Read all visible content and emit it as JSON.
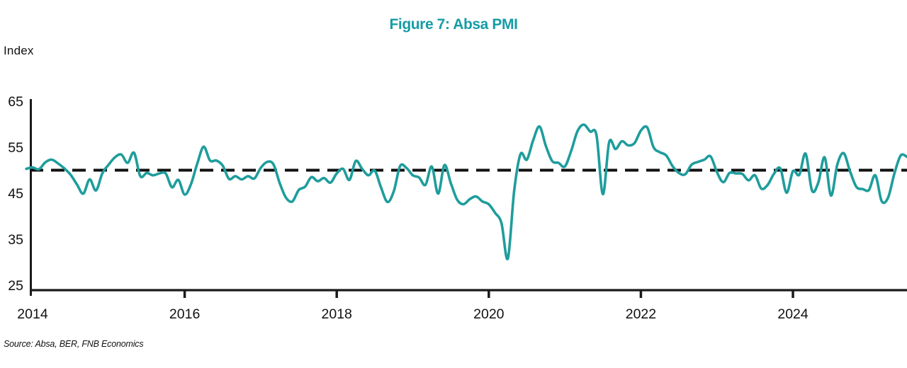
{
  "figure": {
    "title": "Figure 7: Absa PMI",
    "y_axis_unit": "Index",
    "source_note": "Source: Absa, BER, FNB Economics"
  },
  "colors": {
    "line": "#1e9d9c",
    "title": "#169ca6",
    "axis": "#1a1a1a",
    "reference_line": "#111111",
    "text": "#111111",
    "background": "#ffffff"
  },
  "chart_data": {
    "type": "line",
    "title": "Figure 7: Absa PMI",
    "ylabel": "Index",
    "xlabel": "",
    "ylim": [
      25,
      65
    ],
    "y_ticks": [
      65,
      55,
      45,
      35,
      25
    ],
    "x_tick_labels": [
      "2014",
      "2016",
      "2018",
      "2020",
      "2022",
      "2024"
    ],
    "grid": false,
    "legend": "none",
    "reference_line": {
      "y": 50,
      "style": "dashed"
    },
    "series": [
      {
        "name": "Absa PMI",
        "frequency": "monthly",
        "start": "2013-12",
        "end": "2025-07",
        "values": [
          50.3,
          50.6,
          50.2,
          51.7,
          52.3,
          51.5,
          50.4,
          49.0,
          46.9,
          44.9,
          48.0,
          45.6,
          49.3,
          51.2,
          52.8,
          53.4,
          51.6,
          53.8,
          48.7,
          49.4,
          48.9,
          49.3,
          49.3,
          46.3,
          47.9,
          44.7,
          47.0,
          51.5,
          55.1,
          52.1,
          52.1,
          51.0,
          48.1,
          48.7,
          48.0,
          48.7,
          48.2,
          50.5,
          51.8,
          51.3,
          47.2,
          44.0,
          43.2,
          45.7,
          46.4,
          48.5,
          47.6,
          48.3,
          47.3,
          49.3,
          50.3,
          47.9,
          52.0,
          50.3,
          48.9,
          49.9,
          46.2,
          43.1,
          45.4,
          50.9,
          50.5,
          48.9,
          48.4,
          46.8,
          50.8,
          44.9,
          51.1,
          47.2,
          43.6,
          42.6,
          43.7,
          44.3,
          43.2,
          42.6,
          40.7,
          38.5,
          30.8,
          45.5,
          53.5,
          52.3,
          56.5,
          59.5,
          55.3,
          52.0,
          51.6,
          50.8,
          54.2,
          58.5,
          59.9,
          58.4,
          57.6,
          44.8,
          56.1,
          54.6,
          56.3,
          55.4,
          55.9,
          58.6,
          59.3,
          55.0,
          53.9,
          53.2,
          50.9,
          49.4,
          49.1,
          51.2,
          51.8,
          52.3,
          53.0,
          49.6,
          47.4,
          49.4,
          49.3,
          49.2,
          47.8,
          48.9,
          46.0,
          46.8,
          49.2,
          50.4,
          45.1,
          49.8,
          49.0,
          53.6,
          45.6,
          47.3,
          52.8,
          44.5,
          51.2,
          53.7,
          49.8,
          46.4,
          45.9,
          45.7,
          48.9,
          43.3,
          44.0,
          49.2,
          53.2,
          52.9
        ]
      }
    ]
  }
}
